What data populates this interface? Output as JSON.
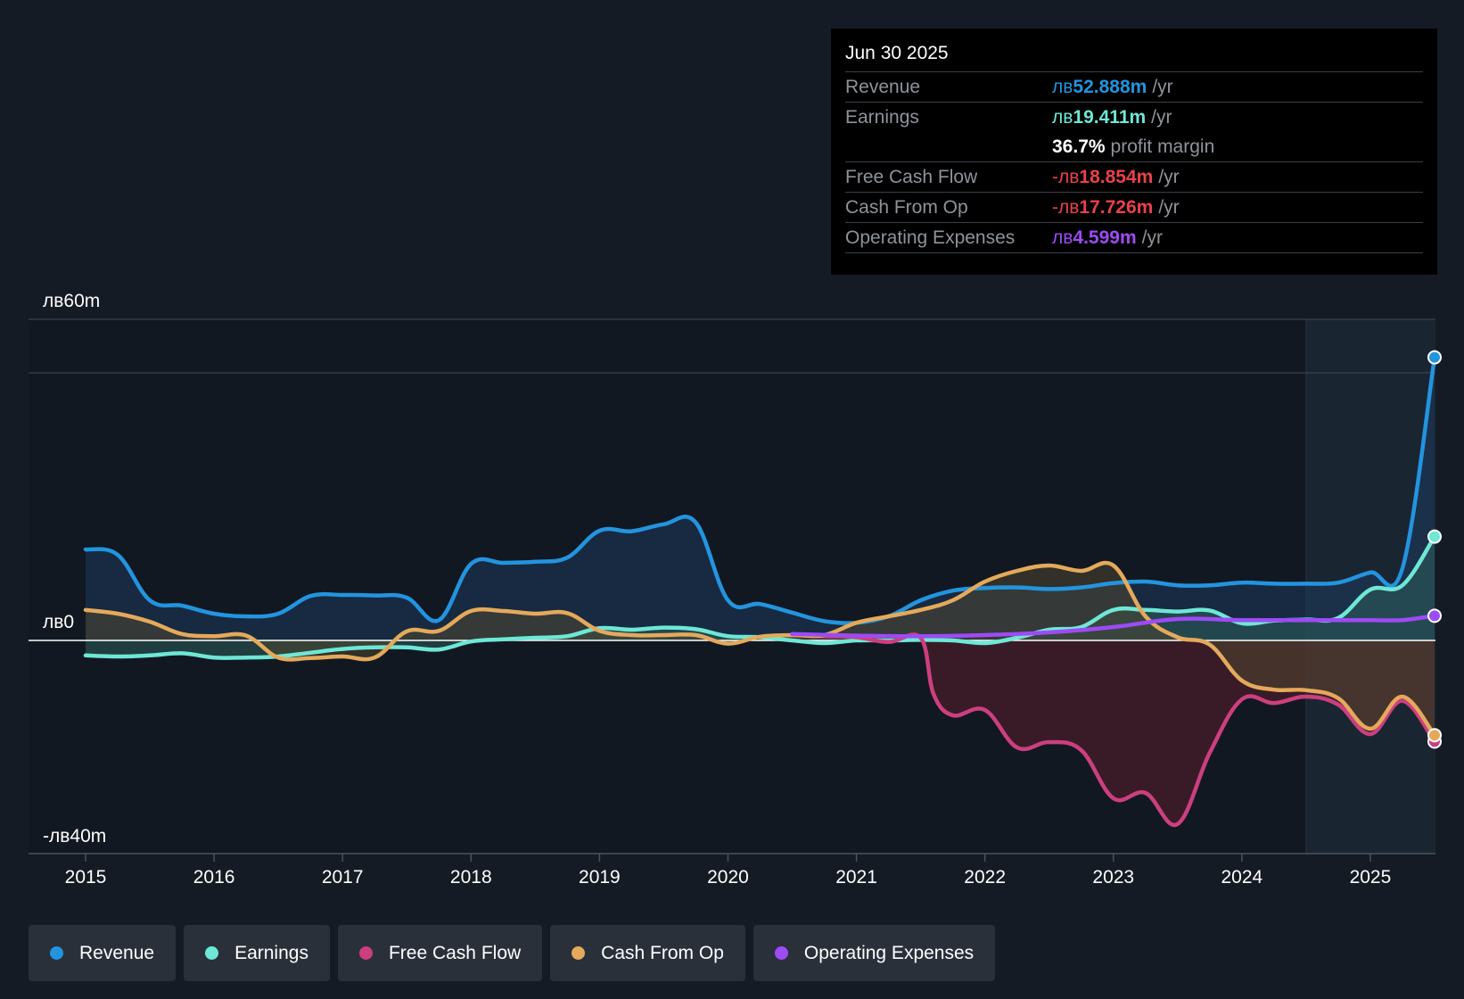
{
  "tooltip": {
    "date": "Jun 30 2025",
    "rows": [
      {
        "label": "Revenue",
        "prefix": "лв",
        "value": "52.888m",
        "unit": "/yr",
        "color": "#2394df"
      },
      {
        "label": "Earnings",
        "prefix": "лв",
        "value": "19.411m",
        "unit": "/yr",
        "color": "#6ee7d6"
      },
      {
        "label": "",
        "prefix": "",
        "value": "36.7%",
        "unit": "profit margin",
        "color": "#ffffff"
      },
      {
        "label": "Free Cash Flow",
        "prefix": "-лв",
        "value": "18.854m",
        "unit": "/yr",
        "color": "#e8424b"
      },
      {
        "label": "Cash From Op",
        "prefix": "-лв",
        "value": "17.726m",
        "unit": "/yr",
        "color": "#e8424b"
      },
      {
        "label": "Operating Expenses",
        "prefix": "лв",
        "value": "4.599m",
        "unit": "/yr",
        "color": "#9d4bf5"
      }
    ]
  },
  "legend": [
    {
      "label": "Revenue",
      "color": "#2394df"
    },
    {
      "label": "Earnings",
      "color": "#6ee7d6"
    },
    {
      "label": "Free Cash Flow",
      "color": "#cc3f7e"
    },
    {
      "label": "Cash From Op",
      "color": "#e5a95b"
    },
    {
      "label": "Operating Expenses",
      "color": "#9d4bf5"
    }
  ],
  "chart_data": {
    "type": "line",
    "title": "",
    "xlabel": "",
    "ylabel": "",
    "xlim": [
      2015,
      2025.5
    ],
    "ylim": [
      -40,
      60
    ],
    "y_tick_labels": [
      {
        "value": 60,
        "label": "лв60m"
      },
      {
        "value": 0,
        "label": "лв0"
      },
      {
        "value": -40,
        "label": "-лв40m"
      }
    ],
    "x_ticks": [
      {
        "value": 2015,
        "label": "2015"
      },
      {
        "value": 2016,
        "label": "2016"
      },
      {
        "value": 2017,
        "label": "2017"
      },
      {
        "value": 2018,
        "label": "2018"
      },
      {
        "value": 2019,
        "label": "2019"
      },
      {
        "value": 2020,
        "label": "2020"
      },
      {
        "value": 2021,
        "label": "2021"
      },
      {
        "value": 2022,
        "label": "2022"
      },
      {
        "value": 2023,
        "label": "2023"
      },
      {
        "value": 2024,
        "label": "2024"
      },
      {
        "value": 2025,
        "label": "2025"
      }
    ],
    "forecast_start": 2024.5,
    "series": [
      {
        "name": "Revenue",
        "color": "#2394df",
        "fill": "#1d3b5c",
        "points": [
          [
            2015.0,
            17.0
          ],
          [
            2015.25,
            16.0
          ],
          [
            2015.5,
            7.5
          ],
          [
            2015.75,
            6.5
          ],
          [
            2016.0,
            5.0
          ],
          [
            2016.25,
            4.5
          ],
          [
            2016.5,
            5.0
          ],
          [
            2016.75,
            8.3
          ],
          [
            2017.0,
            8.5
          ],
          [
            2017.25,
            8.4
          ],
          [
            2017.5,
            8.0
          ],
          [
            2017.75,
            3.8
          ],
          [
            2018.0,
            14.3
          ],
          [
            2018.25,
            14.5
          ],
          [
            2018.5,
            14.7
          ],
          [
            2018.75,
            15.5
          ],
          [
            2019.0,
            20.5
          ],
          [
            2019.25,
            20.4
          ],
          [
            2019.5,
            21.7
          ],
          [
            2019.75,
            22.0
          ],
          [
            2020.0,
            7.5
          ],
          [
            2020.25,
            6.8
          ],
          [
            2020.5,
            5.2
          ],
          [
            2020.75,
            3.6
          ],
          [
            2021.0,
            3.3
          ],
          [
            2021.25,
            4.5
          ],
          [
            2021.5,
            7.5
          ],
          [
            2021.75,
            9.3
          ],
          [
            2022.0,
            9.8
          ],
          [
            2022.25,
            9.9
          ],
          [
            2022.5,
            9.6
          ],
          [
            2022.75,
            9.9
          ],
          [
            2023.0,
            10.7
          ],
          [
            2023.25,
            11.0
          ],
          [
            2023.5,
            10.3
          ],
          [
            2023.75,
            10.3
          ],
          [
            2024.0,
            10.8
          ],
          [
            2024.25,
            10.6
          ],
          [
            2024.5,
            10.6
          ],
          [
            2024.75,
            10.8
          ],
          [
            2025.0,
            12.7
          ],
          [
            2025.25,
            13.5
          ],
          [
            2025.5,
            52.9
          ]
        ]
      },
      {
        "name": "Earnings",
        "color": "#6ee7d6",
        "fill": "#2d5e5a",
        "points": [
          [
            2015.0,
            -2.8
          ],
          [
            2015.25,
            -3.0
          ],
          [
            2015.5,
            -2.8
          ],
          [
            2015.75,
            -2.4
          ],
          [
            2016.0,
            -3.2
          ],
          [
            2016.25,
            -3.2
          ],
          [
            2016.5,
            -3.0
          ],
          [
            2016.75,
            -2.3
          ],
          [
            2017.0,
            -1.6
          ],
          [
            2017.25,
            -1.3
          ],
          [
            2017.5,
            -1.3
          ],
          [
            2017.75,
            -1.7
          ],
          [
            2018.0,
            -0.2
          ],
          [
            2018.25,
            0.2
          ],
          [
            2018.5,
            0.5
          ],
          [
            2018.75,
            0.8
          ],
          [
            2019.0,
            2.3
          ],
          [
            2019.25,
            2.0
          ],
          [
            2019.5,
            2.4
          ],
          [
            2019.75,
            2.1
          ],
          [
            2020.0,
            0.8
          ],
          [
            2020.25,
            0.6
          ],
          [
            2020.5,
            0.0
          ],
          [
            2020.75,
            -0.5
          ],
          [
            2021.0,
            0.0
          ],
          [
            2021.25,
            0.0
          ],
          [
            2021.5,
            0.1
          ],
          [
            2021.75,
            0.0
          ],
          [
            2022.0,
            -0.5
          ],
          [
            2022.25,
            0.5
          ],
          [
            2022.5,
            2.0
          ],
          [
            2022.75,
            2.5
          ],
          [
            2023.0,
            5.7
          ],
          [
            2023.25,
            5.7
          ],
          [
            2023.5,
            5.4
          ],
          [
            2023.75,
            5.6
          ],
          [
            2024.0,
            3.2
          ],
          [
            2024.25,
            3.7
          ],
          [
            2024.5,
            3.9
          ],
          [
            2024.75,
            4.2
          ],
          [
            2025.0,
            9.5
          ],
          [
            2025.25,
            10.3
          ],
          [
            2025.5,
            19.4
          ]
        ]
      },
      {
        "name": "Free Cash Flow",
        "color": "#cc3f7e",
        "fill": "#5a1f2c",
        "points": [
          [
            2020.5,
            1.0
          ],
          [
            2020.75,
            0.8
          ],
          [
            2021.0,
            0.6
          ],
          [
            2021.25,
            -0.3
          ],
          [
            2021.5,
            0.5
          ],
          [
            2021.6,
            -10.0
          ],
          [
            2021.75,
            -14.0
          ],
          [
            2022.0,
            -13.0
          ],
          [
            2022.25,
            -20.0
          ],
          [
            2022.5,
            -19.0
          ],
          [
            2022.75,
            -20.5
          ],
          [
            2023.0,
            -29.5
          ],
          [
            2023.25,
            -28.5
          ],
          [
            2023.5,
            -34.3
          ],
          [
            2023.75,
            -21.0
          ],
          [
            2024.0,
            -11.0
          ],
          [
            2024.25,
            -11.7
          ],
          [
            2024.5,
            -10.5
          ],
          [
            2024.75,
            -12.0
          ],
          [
            2025.0,
            -17.5
          ],
          [
            2025.25,
            -11.3
          ],
          [
            2025.5,
            -18.9
          ]
        ]
      },
      {
        "name": "Cash From Op",
        "color": "#e5a95b",
        "fill": "#4e4530",
        "points": [
          [
            2015.0,
            5.7
          ],
          [
            2015.25,
            5.0
          ],
          [
            2015.5,
            3.5
          ],
          [
            2015.75,
            1.2
          ],
          [
            2016.0,
            0.8
          ],
          [
            2016.25,
            0.9
          ],
          [
            2016.5,
            -3.2
          ],
          [
            2016.75,
            -3.3
          ],
          [
            2017.0,
            -3.0
          ],
          [
            2017.25,
            -3.2
          ],
          [
            2017.5,
            1.7
          ],
          [
            2017.75,
            1.8
          ],
          [
            2018.0,
            5.5
          ],
          [
            2018.25,
            5.5
          ],
          [
            2018.5,
            5.0
          ],
          [
            2018.75,
            5.1
          ],
          [
            2019.0,
            1.8
          ],
          [
            2019.25,
            1.0
          ],
          [
            2019.5,
            1.0
          ],
          [
            2019.75,
            1.0
          ],
          [
            2020.0,
            -0.6
          ],
          [
            2020.25,
            0.7
          ],
          [
            2020.5,
            1.0
          ],
          [
            2020.75,
            1.0
          ],
          [
            2021.0,
            3.3
          ],
          [
            2021.25,
            4.5
          ],
          [
            2021.5,
            5.7
          ],
          [
            2021.75,
            7.5
          ],
          [
            2022.0,
            11.0
          ],
          [
            2022.25,
            13.0
          ],
          [
            2022.5,
            14.0
          ],
          [
            2022.75,
            13.0
          ],
          [
            2023.0,
            14.0
          ],
          [
            2023.25,
            4.5
          ],
          [
            2023.5,
            0.6
          ],
          [
            2023.75,
            -0.8
          ],
          [
            2024.0,
            -7.5
          ],
          [
            2024.25,
            -9.2
          ],
          [
            2024.5,
            -9.3
          ],
          [
            2024.75,
            -10.8
          ],
          [
            2025.0,
            -16.5
          ],
          [
            2025.25,
            -10.5
          ],
          [
            2025.5,
            -17.7
          ]
        ]
      },
      {
        "name": "Operating Expenses",
        "color": "#9d4bf5",
        "fill": null,
        "points": [
          [
            2020.5,
            1.2
          ],
          [
            2021.0,
            0.9
          ],
          [
            2021.5,
            0.8
          ],
          [
            2022.0,
            1.0
          ],
          [
            2022.5,
            1.5
          ],
          [
            2023.0,
            2.5
          ],
          [
            2023.5,
            4.0
          ],
          [
            2024.0,
            3.8
          ],
          [
            2024.5,
            3.8
          ],
          [
            2025.0,
            3.8
          ],
          [
            2025.25,
            3.8
          ],
          [
            2025.5,
            4.6
          ]
        ]
      }
    ]
  }
}
